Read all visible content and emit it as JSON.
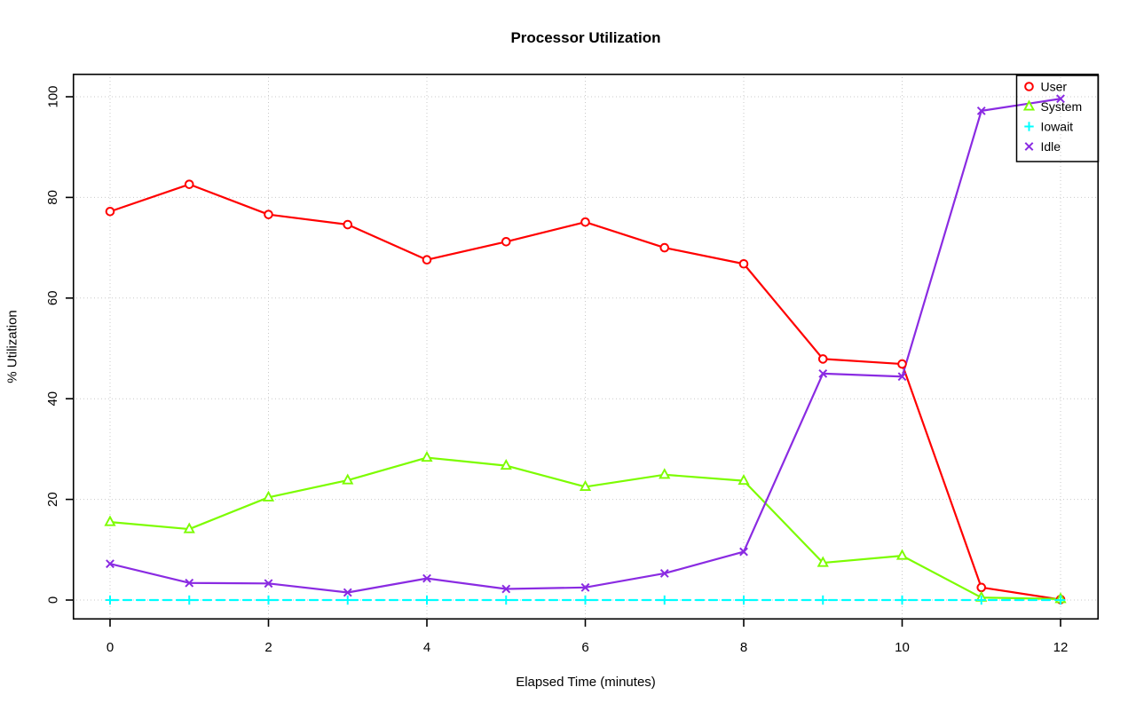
{
  "title": "Processor Utilization",
  "chart_data": {
    "type": "line",
    "title": "Processor Utilization",
    "xlabel": "Elapsed Time (minutes)",
    "ylabel": "% Utilization",
    "x": [
      0,
      1,
      2,
      3,
      4,
      5,
      6,
      7,
      8,
      9,
      10,
      11,
      12
    ],
    "xticks": [
      0,
      2,
      4,
      6,
      8,
      10,
      12
    ],
    "yticks": [
      0,
      20,
      40,
      60,
      80,
      100
    ],
    "xlim": [
      0,
      12
    ],
    "ylim": [
      0,
      100
    ],
    "grid": true,
    "grid_style": "dotted-lightgray",
    "legend_position": "top-right",
    "series": [
      {
        "name": "User",
        "color": "#ff0000",
        "marker": "circle",
        "dash": "solid",
        "values": [
          77.2,
          82.6,
          76.6,
          74.6,
          67.6,
          71.2,
          75.1,
          70.0,
          66.8,
          47.9,
          46.9,
          2.5,
          0.1
        ]
      },
      {
        "name": "System",
        "color": "#7cfc00",
        "marker": "triangle",
        "dash": "solid",
        "values": [
          15.5,
          14.1,
          20.4,
          23.8,
          28.3,
          26.7,
          22.5,
          24.9,
          23.7,
          7.4,
          8.8,
          0.5,
          0.2
        ]
      },
      {
        "name": "Iowait",
        "color": "#00ffff",
        "marker": "plus",
        "dash": "dashed",
        "values": [
          0,
          0,
          0,
          0,
          0,
          0,
          0,
          0,
          0,
          0,
          0,
          0,
          0
        ]
      },
      {
        "name": "Idle",
        "color": "#8a2be2",
        "marker": "x",
        "dash": "solid",
        "values": [
          7.2,
          3.4,
          3.3,
          1.5,
          4.3,
          2.2,
          2.5,
          5.3,
          9.6,
          45.0,
          44.4,
          97.2,
          99.6
        ]
      }
    ]
  }
}
